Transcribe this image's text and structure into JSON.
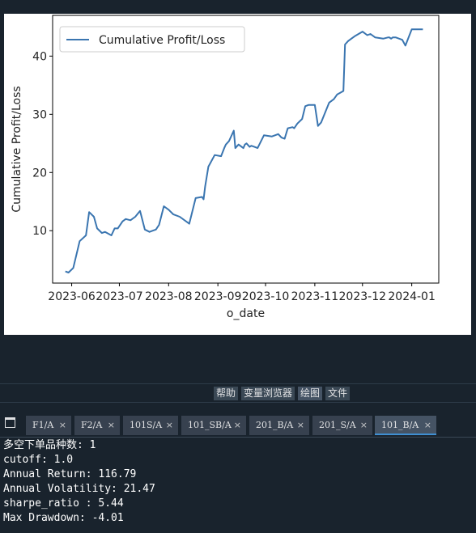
{
  "chart_data": {
    "type": "line",
    "xlabel": "o_date",
    "ylabel": "Cumulative Profit/Loss",
    "legend": {
      "placement": "top-left",
      "entries": [
        "Cumulative Profit/Loss"
      ]
    },
    "x_tick_labels": [
      "2023-06",
      "2023-07",
      "2023-08",
      "2023-09",
      "2023-10",
      "2023-11",
      "2023-12",
      "2024-01"
    ],
    "y_tick_labels": [
      "10",
      "20",
      "30",
      "40"
    ],
    "ylim": [
      1,
      47
    ],
    "xlim": [
      "2023-05-20",
      "2024-01-18"
    ],
    "grid": false,
    "line_color": "#3a75b0",
    "series": [
      {
        "name": "Cumulative Profit/Loss",
        "x": [
          "2023-05-28",
          "2023-05-30",
          "2023-06-02",
          "2023-06-06",
          "2023-06-10",
          "2023-06-12",
          "2023-06-15",
          "2023-06-17",
          "2023-06-20",
          "2023-06-22",
          "2023-06-26",
          "2023-06-28",
          "2023-06-30",
          "2023-07-03",
          "2023-07-05",
          "2023-07-08",
          "2023-07-11",
          "2023-07-14",
          "2023-07-17",
          "2023-07-20",
          "2023-07-22",
          "2023-07-24",
          "2023-07-26",
          "2023-07-29",
          "2023-08-01",
          "2023-08-04",
          "2023-08-08",
          "2023-08-14",
          "2023-08-18",
          "2023-08-22",
          "2023-08-23",
          "2023-08-24",
          "2023-08-26",
          "2023-08-30",
          "2023-09-03",
          "2023-09-05",
          "2023-09-06",
          "2023-09-08",
          "2023-09-11",
          "2023-09-12",
          "2023-09-14",
          "2023-09-17",
          "2023-09-18",
          "2023-09-19",
          "2023-09-21",
          "2023-09-22",
          "2023-09-24",
          "2023-09-26",
          "2023-09-30",
          "2023-10-05",
          "2023-10-09",
          "2023-10-11",
          "2023-10-13",
          "2023-10-15",
          "2023-10-18",
          "2023-10-19",
          "2023-10-21",
          "2023-10-24",
          "2023-10-26",
          "2023-10-28",
          "2023-11-01",
          "2023-11-03",
          "2023-11-05",
          "2023-11-10",
          "2023-11-13",
          "2023-11-15",
          "2023-11-19",
          "2023-11-20",
          "2023-11-22",
          "2023-11-24",
          "2023-11-26",
          "2023-12-01",
          "2023-12-04",
          "2023-12-06",
          "2023-12-09",
          "2023-12-14",
          "2023-12-17",
          "2023-12-18",
          "2023-12-19",
          "2023-12-20",
          "2023-12-22",
          "2023-12-26",
          "2023-12-28",
          "2024-01-01",
          "2024-01-03",
          "2024-01-05",
          "2024-01-07",
          "2024-01-08"
        ],
        "values": [
          3.0,
          2.8,
          3.6,
          8.2,
          9.2,
          13.2,
          12.4,
          10.4,
          9.6,
          9.8,
          9.2,
          10.4,
          10.4,
          11.6,
          12.0,
          11.8,
          12.4,
          13.4,
          10.2,
          9.8,
          10.0,
          10.2,
          11.0,
          14.2,
          13.6,
          12.8,
          12.4,
          11.2,
          15.6,
          15.8,
          15.4,
          17.6,
          21.0,
          23.0,
          22.8,
          24.2,
          24.8,
          25.4,
          27.2,
          24.2,
          24.8,
          24.2,
          24.8,
          25.0,
          24.4,
          24.6,
          24.4,
          24.2,
          26.4,
          26.2,
          26.6,
          26.0,
          25.8,
          27.6,
          27.8,
          27.6,
          28.4,
          29.2,
          31.4,
          31.6,
          31.6,
          28.0,
          28.6,
          32.0,
          32.6,
          33.4,
          34.0,
          42.0,
          42.6,
          43.0,
          43.4,
          44.2,
          43.6,
          43.8,
          43.2,
          43.0,
          43.2,
          43.2,
          43.0,
          43.2,
          43.2,
          42.8,
          41.8,
          44.6,
          44.6,
          44.6,
          44.6,
          44.6
        ]
      }
    ]
  },
  "pane_tabs": [
    {
      "label": "帮助",
      "active": false
    },
    {
      "label": "变量浏览器",
      "active": false
    },
    {
      "label": "绘图",
      "active": true
    },
    {
      "label": "文件",
      "active": false
    }
  ],
  "console_tabs": [
    {
      "label": "F1/A",
      "close": "×",
      "active": false
    },
    {
      "label": "F2/A",
      "close": "×",
      "active": false
    },
    {
      "label": "101S/A",
      "close": "×",
      "active": false
    },
    {
      "label": "101_SB/A",
      "close": "×",
      "active": false
    },
    {
      "label": "201_B/A",
      "close": "×",
      "active": false
    },
    {
      "label": "201_S/A",
      "close": "×",
      "active": false
    },
    {
      "label": "101_B/A",
      "close": "×",
      "active": true
    }
  ],
  "console_lines": [
    "多空下单品种数: 1",
    "cutoff: 1.0",
    "Annual Return: 116.79",
    "Annual Volatility: 21.47",
    "sharpe_ratio : 5.44",
    "Max Drawdown: -4.01"
  ]
}
